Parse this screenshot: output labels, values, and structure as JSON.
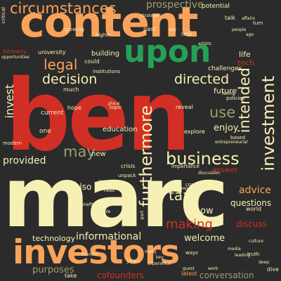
{
  "theme": {
    "background": "#2b2b2b",
    "colors": {
      "cream": "#f6f0b4",
      "orange": "#f9a35a",
      "red": "#d12f26",
      "green": "#24a155",
      "mid": "#9f9f6a"
    }
  },
  "words": {
    "ben": "ben",
    "marc": "marc",
    "content": "content",
    "investors": "investors",
    "upon": "upon",
    "circumstances": "circumstances",
    "legal": "legal",
    "decision": "decision",
    "invest": "invest",
    "business": "business",
    "investment": "investment",
    "intended": "intended",
    "furthermore": "furthermore",
    "directed": "directed",
    "tax": "tax",
    "may": "may",
    "use": "use",
    "making": "making",
    "informational": "informational",
    "provided": "provided",
    "advice": "advice",
    "enjoy": "enjoy",
    "prospective": "prospective",
    "cofounders": "cofounders",
    "purposes": "purposes",
    "conversation": "conversation",
    "questions": "questions",
    "technology": "technology",
    "welcome": "welcome",
    "discuss": "discuss",
    "show": "show",
    "also": "also",
    "new": "new",
    "education": "education",
    "life": "life",
    "tech": "tech",
    "future": "future",
    "challenges": "challenges",
    "building": "building",
    "university": "university",
    "formerly": "formerly",
    "hope": "hope",
    "answer": "answer",
    "potential": "potential",
    "crisis": "crisis",
    "latest": "latest",
    "could": "could",
    "take": "take",
    "years": "years",
    "world": "world",
    "explore": "explore",
    "reveal": "reveal",
    "current": "current",
    "special": "special",
    "one": "one",
    "much": "much",
    "higher": "higher",
    "past": "past",
    "little": "little",
    "film": "film",
    "unpack": "unpack",
    "community": "community",
    "importance": "importance",
    "topic": "topic",
    "critical": "critical",
    "growing": "growing",
    "talk": "talk",
    "turn": "turn",
    "affairs": "affairs",
    "strategies": "strategies",
    "opportunities": "opportunities",
    "artists": "artists",
    "facing": "facing",
    "modern": "modern",
    "institutions": "institutions",
    "policies": "policies",
    "based": "based",
    "entrepreneurial": "entrepreneurial",
    "discussion": "discussion",
    "truth": "truth",
    "dive": "dive",
    "benefits": "benefits",
    "part": "part",
    "ways": "ways",
    "leading": "leading",
    "place": "place",
    "work": "work",
    "experience": "experience",
    "culture": "culture",
    "regulation": "regulation",
    "founder": "founder",
    "many": "many",
    "role": "role",
    "media": "media",
    "key": "key",
    "guest": "guest",
    "deep": "deep",
    "need": "need",
    "people": "people",
    "day": "day",
    "age": "age"
  }
}
